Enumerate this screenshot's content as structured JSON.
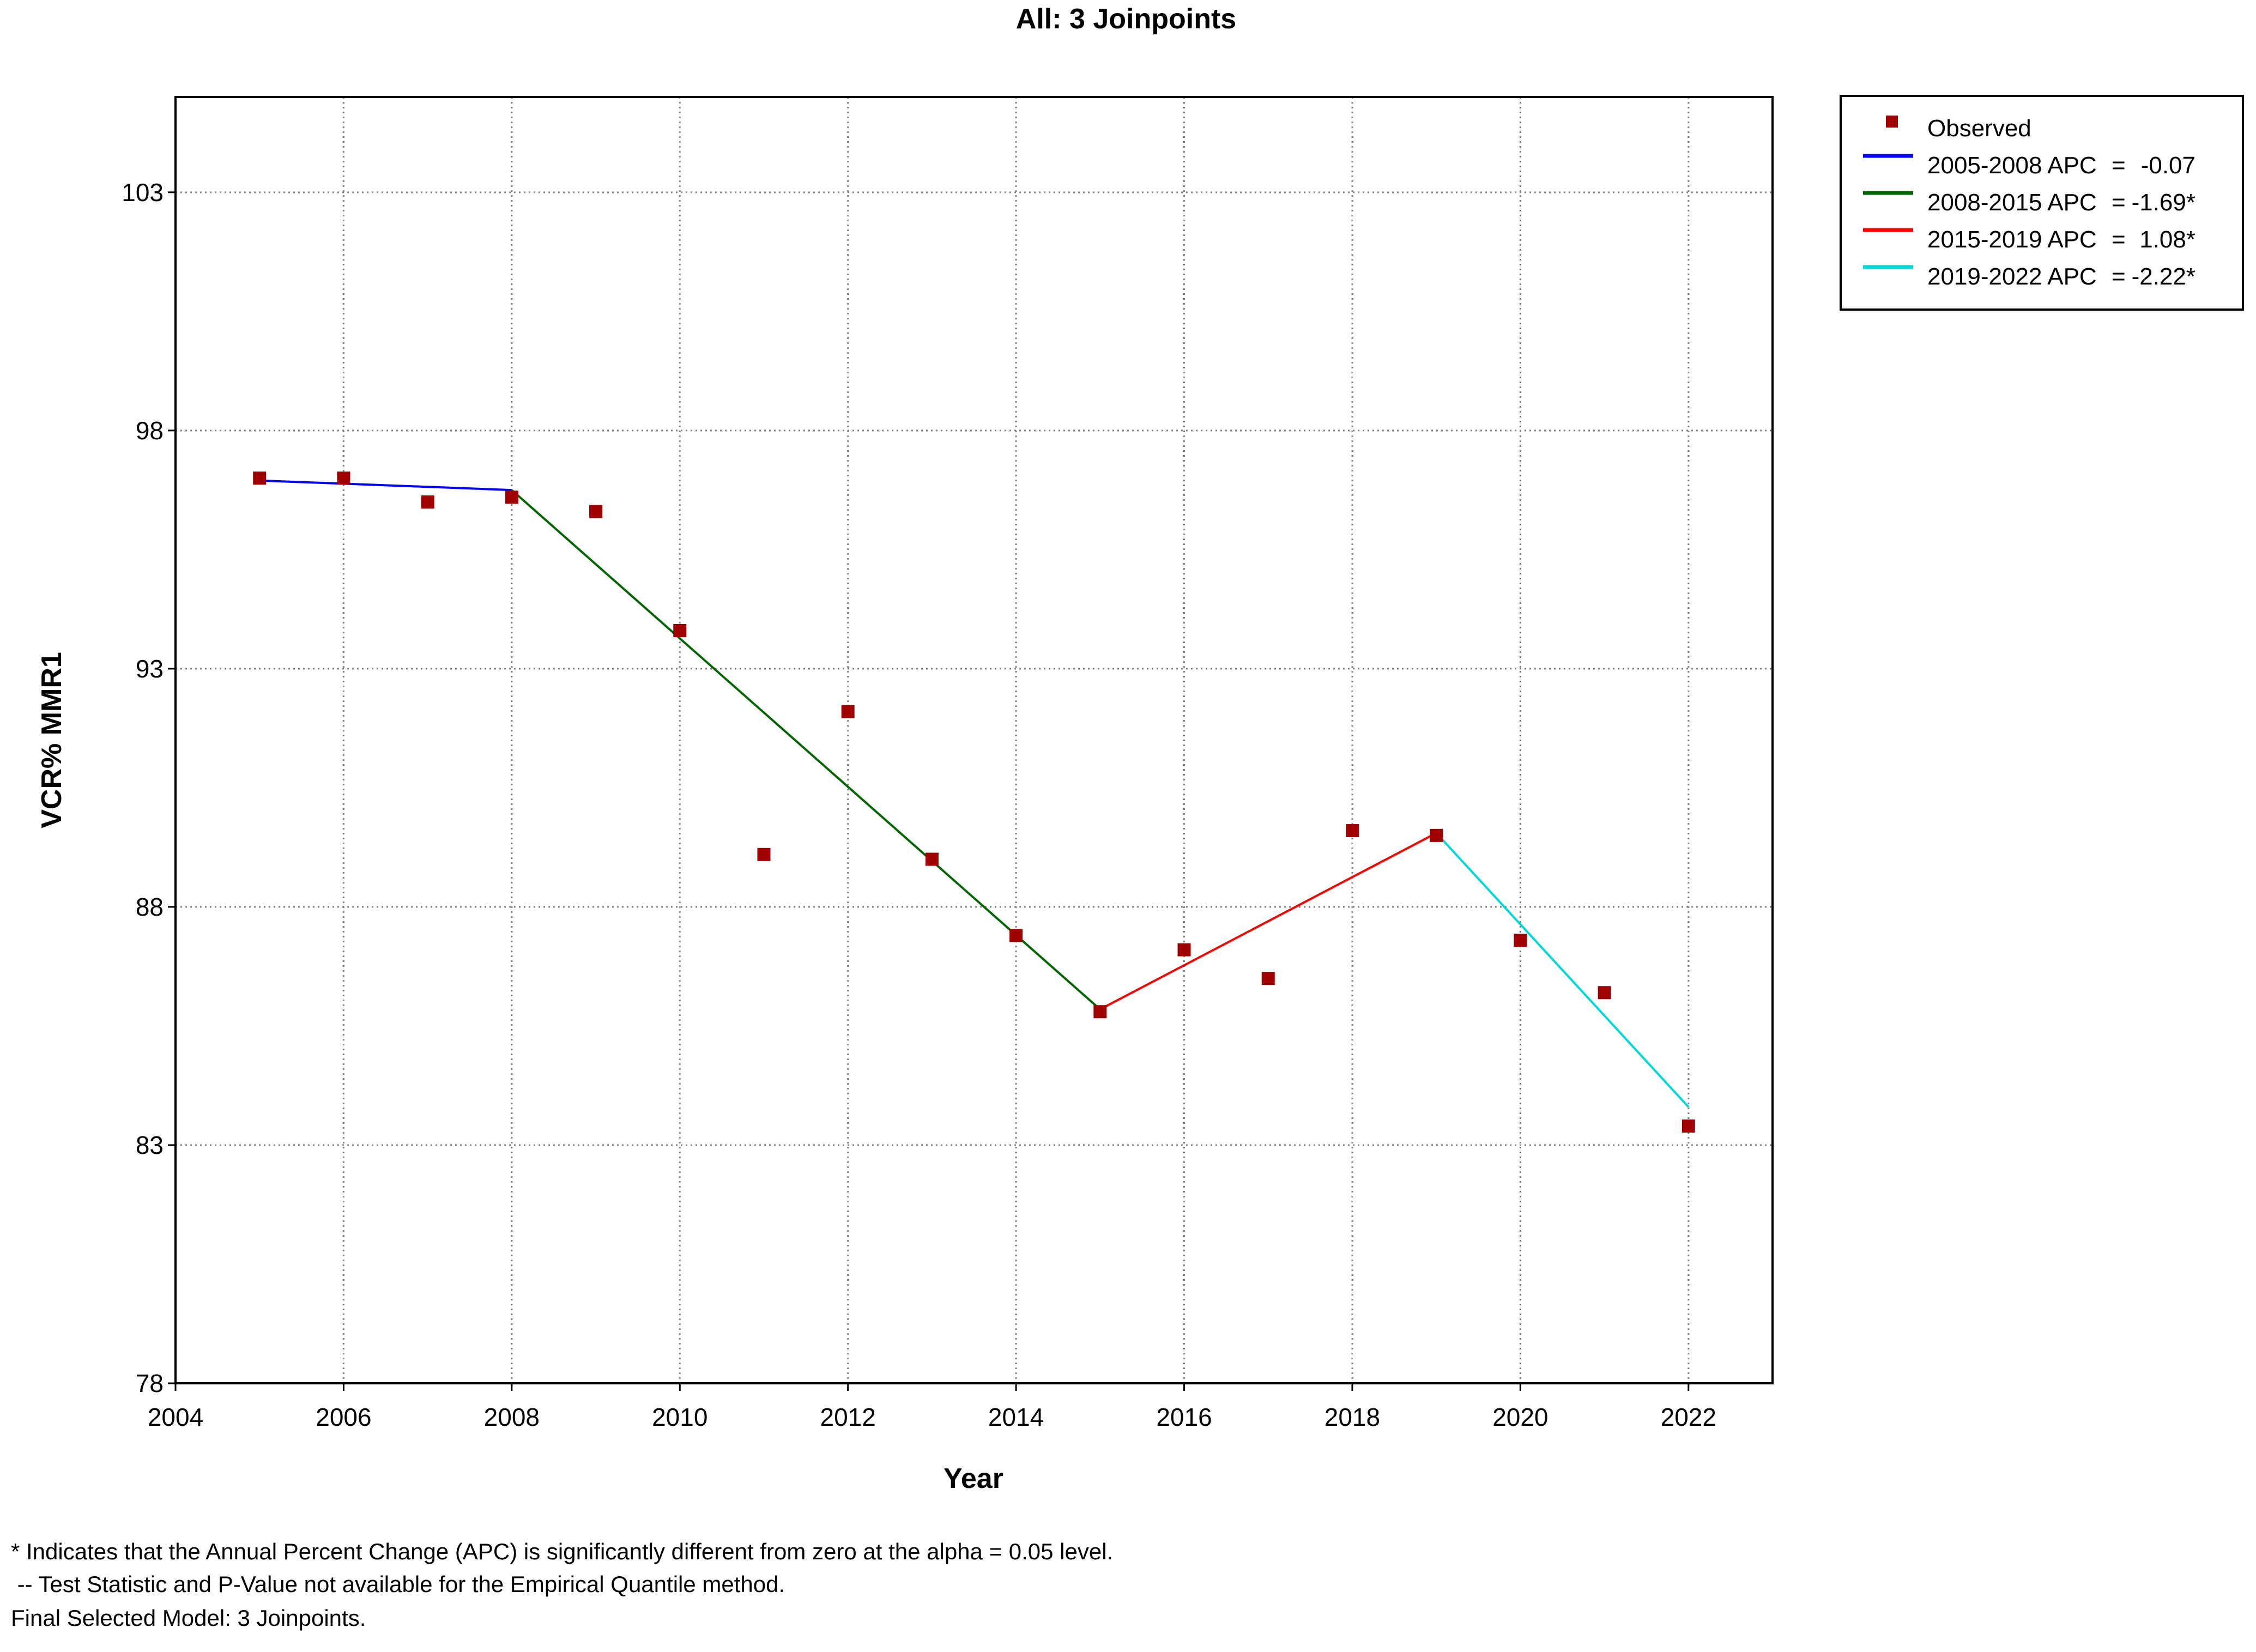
{
  "chart_data": {
    "type": "line",
    "title": "All: 3 Joinpoints",
    "xlabel": "Year",
    "ylabel": "VCR% MMR1",
    "xlim": [
      2004,
      2023
    ],
    "ylim": [
      78,
      105
    ],
    "x_ticks": [
      2004,
      2006,
      2008,
      2010,
      2012,
      2014,
      2016,
      2018,
      2020,
      2022
    ],
    "y_ticks": [
      78,
      83,
      88,
      93,
      98,
      103
    ],
    "grid": true,
    "legend_position": "top-right",
    "observed": {
      "name": "Observed",
      "color": "#a00000",
      "x": [
        2005,
        2006,
        2007,
        2008,
        2009,
        2010,
        2011,
        2012,
        2013,
        2014,
        2015,
        2016,
        2017,
        2018,
        2019,
        2020,
        2021,
        2022
      ],
      "y": [
        97.0,
        97.0,
        96.5,
        96.6,
        96.3,
        93.8,
        89.1,
        92.1,
        89.0,
        87.4,
        85.8,
        87.1,
        86.5,
        89.6,
        89.5,
        87.3,
        86.2,
        83.4
      ]
    },
    "series": [
      {
        "name": "2005-2008 APC",
        "apc": "-0.07",
        "color": "#0000ff",
        "x": [
          2005,
          2008
        ],
        "y": [
          96.95,
          96.75
        ]
      },
      {
        "name": "2008-2015 APC",
        "apc": "-1.69*",
        "color": "#006400",
        "x": [
          2008,
          2015
        ],
        "y": [
          96.75,
          85.85
        ]
      },
      {
        "name": "2015-2019 APC",
        "apc": "1.08*",
        "color": "#ff0000",
        "x": [
          2015,
          2019
        ],
        "y": [
          85.85,
          89.55
        ]
      },
      {
        "name": "2019-2022 APC",
        "apc": "-2.22*",
        "color": "#00d8d8",
        "x": [
          2019,
          2022
        ],
        "y": [
          89.55,
          83.8
        ]
      }
    ]
  },
  "footnotes": {
    "line1": "* Indicates that the Annual Percent Change (APC) is significantly different from zero at the alpha = 0.05 level.",
    "line2": " -- Test Statistic and P-Value not available for the Empirical Quantile method.",
    "line3": "Final Selected Model: 3 Joinpoints."
  },
  "colors": {
    "grid": "#808080",
    "axes": "#000000",
    "marker": "#a00000"
  }
}
